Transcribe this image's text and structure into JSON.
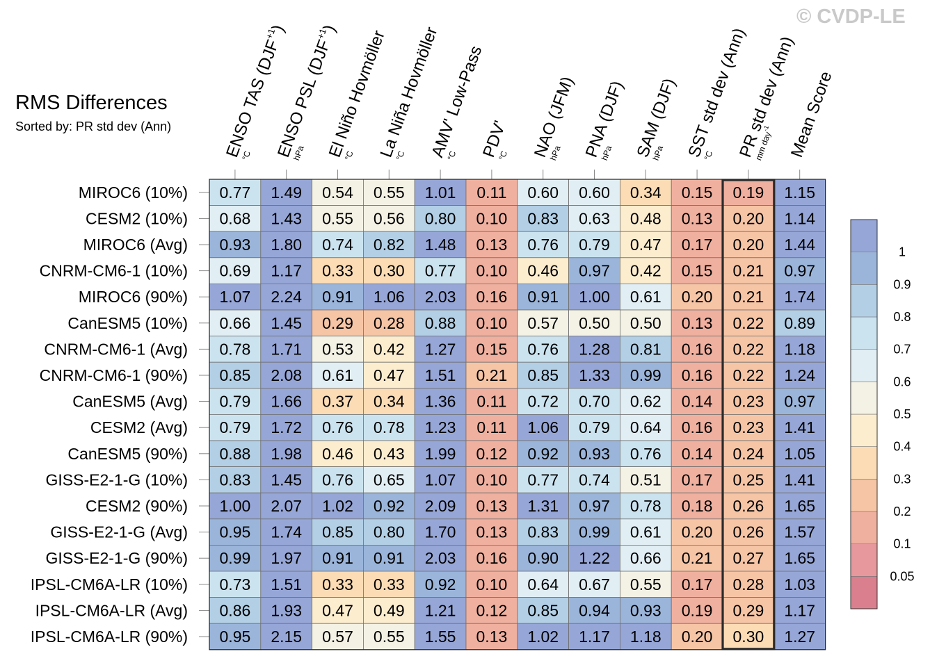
{
  "chart_data": {
    "type": "heatmap",
    "title": "RMS Differences",
    "subtitle": "Sorted by: PR std dev (Ann)",
    "copyright": "© CVDP-LE",
    "highlight_column": 10,
    "columns": [
      {
        "label": "ENSO TAS (DJF",
        "sup": "+1",
        "tail": ")",
        "unit": "°C"
      },
      {
        "label": "ENSO PSL (DJF",
        "sup": "+1",
        "tail": ")",
        "unit": "hPa"
      },
      {
        "label": "El Niño Hovmöller",
        "sup": "",
        "tail": "",
        "unit": "°C"
      },
      {
        "label": "La Niña Hovmöller",
        "sup": "",
        "tail": "",
        "unit": "°C"
      },
      {
        "label": "AMV' Low-Pass",
        "sup": "",
        "tail": "",
        "unit": "°C"
      },
      {
        "label": "PDV'",
        "sup": "",
        "tail": "",
        "unit": "°C"
      },
      {
        "label": "NAO (JFM)",
        "sup": "",
        "tail": "",
        "unit": "hPa"
      },
      {
        "label": "PNA (DJF)",
        "sup": "",
        "tail": "",
        "unit": "hPa"
      },
      {
        "label": "SAM (DJF)",
        "sup": "",
        "tail": "",
        "unit": "hPa"
      },
      {
        "label": "SST std dev (Ann)",
        "sup": "",
        "tail": "",
        "unit": "°C"
      },
      {
        "label": "PR std dev (Ann)",
        "sup": "",
        "tail": "",
        "unit": "mm day",
        "unit_sup": "-1"
      },
      {
        "label": "Mean Score",
        "sup": "",
        "tail": "",
        "unit": ""
      }
    ],
    "rows": [
      {
        "label": "MIROC6 (10%)",
        "values": [
          "0.77",
          "1.49",
          "0.54",
          "0.55",
          "1.01",
          "0.11",
          "0.60",
          "0.60",
          "0.34",
          "0.15",
          "0.19",
          "1.15"
        ]
      },
      {
        "label": "CESM2 (10%)",
        "values": [
          "0.68",
          "1.43",
          "0.55",
          "0.56",
          "0.80",
          "0.10",
          "0.83",
          "0.63",
          "0.48",
          "0.13",
          "0.20",
          "1.14"
        ]
      },
      {
        "label": "MIROC6 (Avg)",
        "values": [
          "0.93",
          "1.80",
          "0.74",
          "0.82",
          "1.48",
          "0.13",
          "0.76",
          "0.79",
          "0.47",
          "0.17",
          "0.20",
          "1.44"
        ]
      },
      {
        "label": "CNRM-CM6-1 (10%)",
        "values": [
          "0.69",
          "1.17",
          "0.33",
          "0.30",
          "0.77",
          "0.10",
          "0.46",
          "0.97",
          "0.42",
          "0.15",
          "0.21",
          "0.97"
        ]
      },
      {
        "label": "MIROC6 (90%)",
        "values": [
          "1.07",
          "2.24",
          "0.91",
          "1.06",
          "2.03",
          "0.16",
          "0.91",
          "1.00",
          "0.61",
          "0.20",
          "0.21",
          "1.74"
        ]
      },
      {
        "label": "CanESM5 (10%)",
        "values": [
          "0.66",
          "1.45",
          "0.29",
          "0.28",
          "0.88",
          "0.10",
          "0.57",
          "0.50",
          "0.50",
          "0.13",
          "0.22",
          "0.89"
        ]
      },
      {
        "label": "CNRM-CM6-1 (Avg)",
        "values": [
          "0.78",
          "1.71",
          "0.53",
          "0.42",
          "1.27",
          "0.15",
          "0.76",
          "1.28",
          "0.81",
          "0.16",
          "0.22",
          "1.18"
        ]
      },
      {
        "label": "CNRM-CM6-1 (90%)",
        "values": [
          "0.85",
          "2.08",
          "0.61",
          "0.47",
          "1.51",
          "0.21",
          "0.85",
          "1.33",
          "0.99",
          "0.16",
          "0.22",
          "1.24"
        ]
      },
      {
        "label": "CanESM5 (Avg)",
        "values": [
          "0.79",
          "1.66",
          "0.37",
          "0.34",
          "1.36",
          "0.11",
          "0.72",
          "0.70",
          "0.62",
          "0.14",
          "0.23",
          "0.97"
        ]
      },
      {
        "label": "CESM2 (Avg)",
        "values": [
          "0.79",
          "1.72",
          "0.76",
          "0.78",
          "1.23",
          "0.11",
          "1.06",
          "0.79",
          "0.64",
          "0.16",
          "0.23",
          "1.41"
        ]
      },
      {
        "label": "CanESM5 (90%)",
        "values": [
          "0.88",
          "1.98",
          "0.46",
          "0.43",
          "1.99",
          "0.12",
          "0.92",
          "0.93",
          "0.76",
          "0.14",
          "0.24",
          "1.05"
        ]
      },
      {
        "label": "GISS-E2-1-G (10%)",
        "values": [
          "0.83",
          "1.45",
          "0.76",
          "0.65",
          "1.07",
          "0.10",
          "0.77",
          "0.74",
          "0.51",
          "0.17",
          "0.25",
          "1.41"
        ]
      },
      {
        "label": "CESM2 (90%)",
        "values": [
          "1.00",
          "2.07",
          "1.02",
          "0.92",
          "2.09",
          "0.13",
          "1.31",
          "0.97",
          "0.78",
          "0.18",
          "0.26",
          "1.65"
        ]
      },
      {
        "label": "GISS-E2-1-G (Avg)",
        "values": [
          "0.95",
          "1.74",
          "0.85",
          "0.80",
          "1.70",
          "0.13",
          "0.83",
          "0.99",
          "0.61",
          "0.20",
          "0.26",
          "1.57"
        ]
      },
      {
        "label": "GISS-E2-1-G (90%)",
        "values": [
          "0.99",
          "1.97",
          "0.91",
          "0.91",
          "2.03",
          "0.16",
          "0.90",
          "1.22",
          "0.66",
          "0.21",
          "0.27",
          "1.65"
        ]
      },
      {
        "label": "IPSL-CM6A-LR (10%)",
        "values": [
          "0.73",
          "1.51",
          "0.33",
          "0.33",
          "0.92",
          "0.10",
          "0.64",
          "0.67",
          "0.55",
          "0.17",
          "0.28",
          "1.03"
        ]
      },
      {
        "label": "IPSL-CM6A-LR (Avg)",
        "values": [
          "0.86",
          "1.93",
          "0.47",
          "0.49",
          "1.21",
          "0.12",
          "0.85",
          "0.94",
          "0.93",
          "0.19",
          "0.29",
          "1.17"
        ]
      },
      {
        "label": "IPSL-CM6A-LR (90%)",
        "values": [
          "0.95",
          "2.15",
          "0.57",
          "0.55",
          "1.55",
          "0.13",
          "1.02",
          "1.17",
          "1.18",
          "0.20",
          "0.30",
          "1.27"
        ]
      }
    ],
    "colorbar": {
      "boundaries": [
        0.05,
        0.1,
        0.2,
        0.3,
        0.4,
        0.5,
        0.6,
        0.7,
        0.8,
        0.9,
        1
      ],
      "labels": [
        "0.05",
        "0.1",
        "0.2",
        "0.3",
        "0.4",
        "0.5",
        "0.6",
        "0.7",
        "0.8",
        "0.9",
        "1"
      ],
      "colors": [
        "#d97f8e",
        "#e7989c",
        "#f0b09f",
        "#f6c5a6",
        "#fbdcb5",
        "#fcedcf",
        "#f4f2e5",
        "#e1eef4",
        "#cbe3ef",
        "#b2cfe5",
        "#9bb5da",
        "#96a6d6"
      ]
    }
  }
}
